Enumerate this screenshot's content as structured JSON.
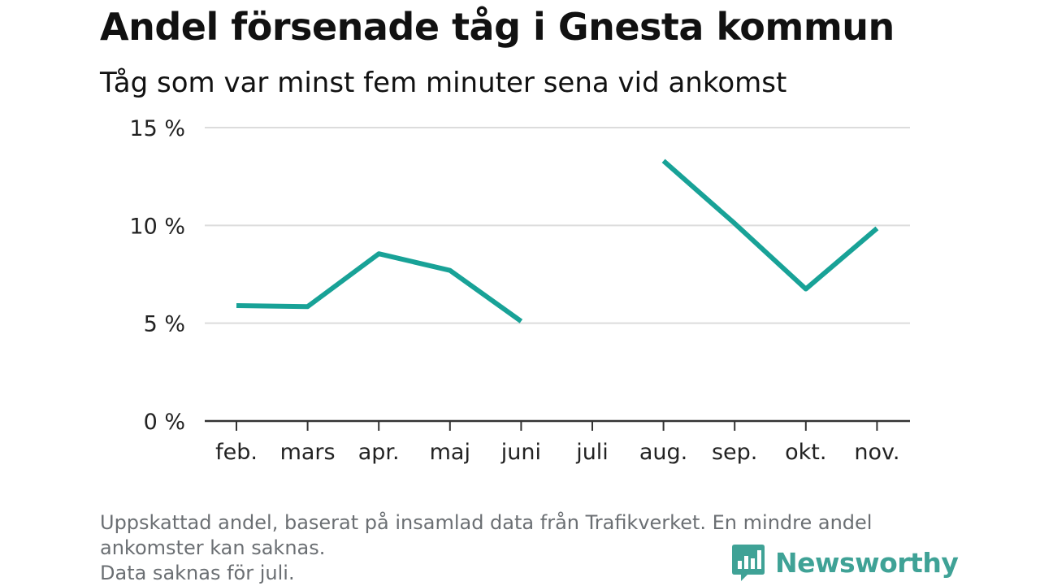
{
  "chart_data": {
    "type": "line",
    "title": "Andel försenade tåg i Gnesta kommun",
    "subtitle": "Tåg som var minst fem minuter sena vid ankomst",
    "categories": [
      "feb.",
      "mars",
      "apr.",
      "maj",
      "juni",
      "juli",
      "aug.",
      "sep.",
      "okt.",
      "nov."
    ],
    "series": [
      {
        "values": [
          5.9,
          5.85,
          8.55,
          7.7,
          5.1,
          null,
          13.3,
          10.1,
          6.75,
          9.85
        ]
      }
    ],
    "yticks": [
      "0 %",
      "5 %",
      "10 %",
      "15 %"
    ],
    "ytick_values": [
      0,
      5,
      10,
      15
    ],
    "ylim": [
      0,
      15
    ],
    "grid": true,
    "line_color": "#18a297"
  },
  "footnote": {
    "line1": "Uppskattad andel, baserat på insamlad data från Trafikverket. En mindre andel",
    "line2": "ankomster kan saknas.",
    "line3": "Data saknas för juli."
  },
  "brand": {
    "name": "Newsworthy",
    "logo_icon": "bar-chart-bubble-icon",
    "color": "#3fa296"
  }
}
